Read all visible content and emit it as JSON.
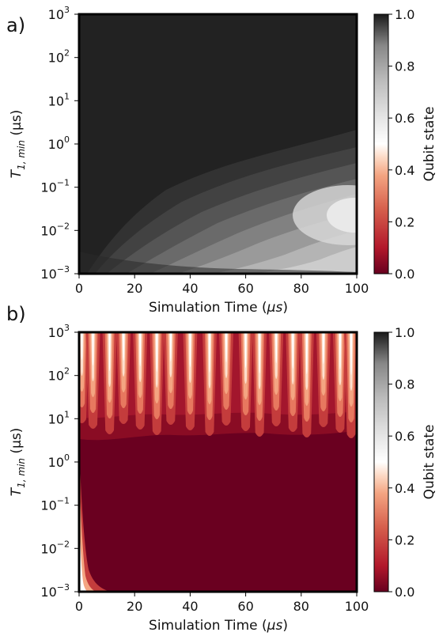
{
  "chart_data": [
    {
      "panel_label": "a)",
      "type": "heatmap",
      "colormap": "RdGy",
      "xlabel_text": "Simulation Time (",
      "xlabel_unit": "μs",
      "xlabel_close": ")",
      "ylabel_T": "T",
      "ylabel_sub": "1, min",
      "ylabel_unit": " (μs)",
      "xlim": [
        0,
        100
      ],
      "ylim": [
        0.001,
        1000
      ],
      "yscale": "log",
      "x_ticks": [
        "0",
        "20",
        "40",
        "60",
        "80",
        "100"
      ],
      "y_ticks": [
        {
          "base": "10",
          "exp": "−3"
        },
        {
          "base": "10",
          "exp": "−2"
        },
        {
          "base": "10",
          "exp": "−1"
        },
        {
          "base": "10",
          "exp": "0"
        },
        {
          "base": "10",
          "exp": "1"
        },
        {
          "base": "10",
          "exp": "2"
        },
        {
          "base": "10",
          "exp": "3"
        }
      ],
      "colorbar": {
        "label": "Qubit state",
        "ticks": [
          "0.0",
          "0.2",
          "0.4",
          "0.6",
          "0.8",
          "1.0"
        ],
        "range": [
          0,
          1
        ]
      },
      "summary": "Qubit state is ~1.0 at large T1,min; a lighter lobe centered near T1,min 0.03 μs grows with time, reaching ~0.5 at 100 μs."
    },
    {
      "panel_label": "b)",
      "type": "heatmap",
      "colormap": "RdGy",
      "xlabel_text": "Simulation Time (",
      "xlabel_unit": "μs",
      "xlabel_close": ")",
      "ylabel_T": "T",
      "ylabel_sub": "1, min",
      "ylabel_unit": " (μs)",
      "xlim": [
        0,
        100
      ],
      "ylim": [
        0.001,
        1000
      ],
      "yscale": "log",
      "x_ticks": [
        "0",
        "20",
        "40",
        "60",
        "80",
        "100"
      ],
      "y_ticks": [
        {
          "base": "10",
          "exp": "−3"
        },
        {
          "base": "10",
          "exp": "−2"
        },
        {
          "base": "10",
          "exp": "−1"
        },
        {
          "base": "10",
          "exp": "0"
        },
        {
          "base": "10",
          "exp": "1"
        },
        {
          "base": "10",
          "exp": "2"
        },
        {
          "base": "10",
          "exp": "3"
        }
      ],
      "colorbar": {
        "label": "Qubit state",
        "ticks": [
          "0.0",
          "0.2",
          "0.4",
          "0.6",
          "0.8",
          "1.0"
        ],
        "range": [
          0,
          1
        ]
      },
      "peak_times": [
        1,
        5,
        11,
        16,
        22,
        28,
        33,
        40,
        47,
        53,
        60,
        65,
        71,
        77,
        82,
        88,
        94,
        98
      ],
      "summary": "Qubit state is ~0 for most of the map; oscillating bright peaks appear for T1,min above ~0.5 μs, and a thin bright edge near t=0 at small T1,min."
    }
  ]
}
